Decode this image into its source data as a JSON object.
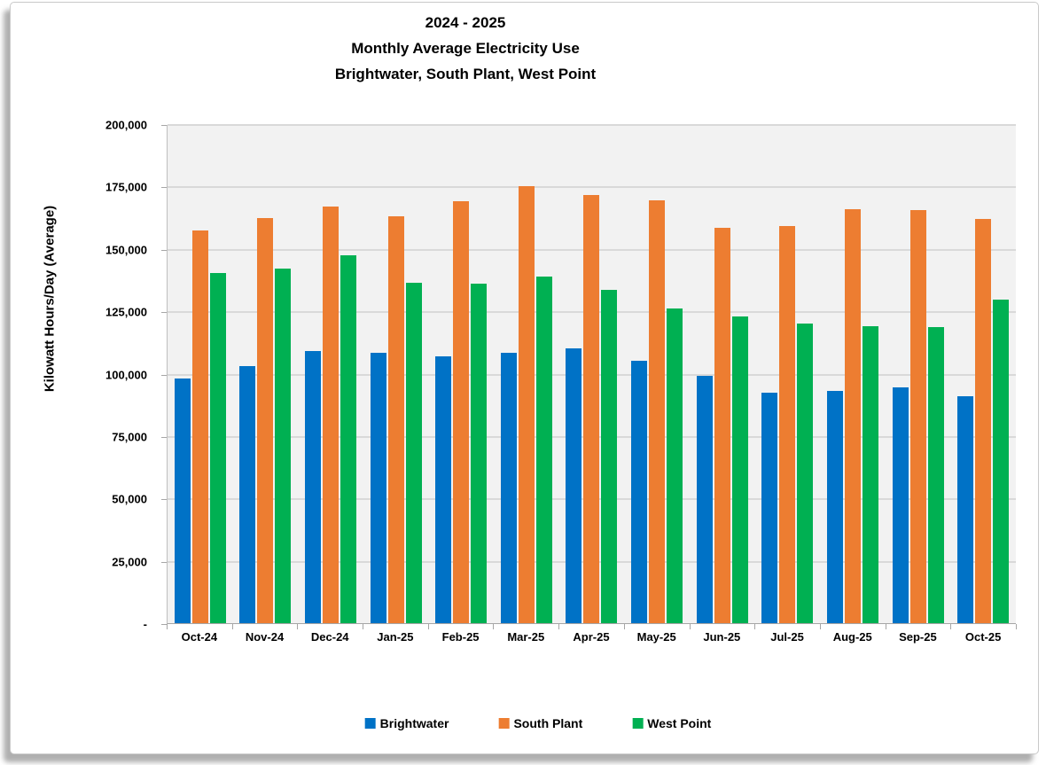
{
  "title": {
    "line1": "2024 - 2025",
    "line2": "Monthly Average Electricity Use",
    "line3": "Brightwater, South Plant, West Point"
  },
  "chart_data": {
    "type": "bar",
    "title": "2024 - 2025 Monthly Average Electricity Use — Brightwater, South Plant, West Point",
    "xlabel": "",
    "ylabel": "Kilowatt Hours/Day (Average)",
    "ylim": [
      0,
      200000
    ],
    "ytick_step": 25000,
    "ytick_labels": [
      "-",
      "25,000",
      "50,000",
      "75,000",
      "100,000",
      "125,000",
      "150,000",
      "175,000",
      "200,000"
    ],
    "grid": true,
    "legend_position": "bottom",
    "plot_bg_color": "#F2F2F2",
    "gridline_color": "#D9D9D9",
    "categories": [
      "Oct-24",
      "Nov-24",
      "Dec-24",
      "Jan-25",
      "Feb-25",
      "Mar-25",
      "Apr-25",
      "May-25",
      "Jun-25",
      "Jul-25",
      "Aug-25",
      "Sep-25",
      "Oct-25"
    ],
    "series": [
      {
        "name": "Brightwater",
        "color": "#0072C6",
        "values": [
          98000,
          103000,
          109000,
          108500,
          107000,
          108500,
          110000,
          105000,
          99000,
          92500,
          93000,
          94500,
          91000
        ]
      },
      {
        "name": "South Plant",
        "color": "#ED7D31",
        "values": [
          157500,
          162500,
          167000,
          163000,
          169000,
          175000,
          171500,
          169500,
          158500,
          159000,
          166000,
          165500,
          162000
        ]
      },
      {
        "name": "West Point",
        "color": "#00B052",
        "values": [
          140500,
          142000,
          147500,
          136500,
          136000,
          139000,
          133500,
          126000,
          123000,
          120000,
          119000,
          118500,
          129500
        ]
      }
    ]
  }
}
